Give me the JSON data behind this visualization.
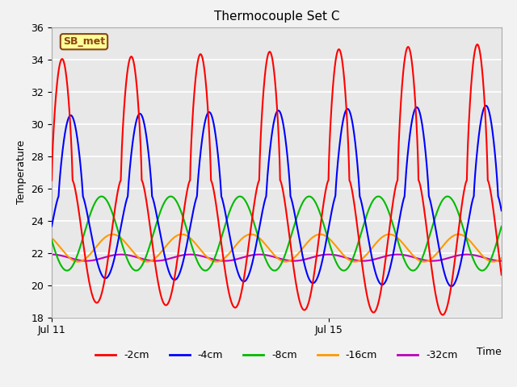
{
  "title": "Thermocouple Set C",
  "ylabel": "Temperature",
  "ylim": [
    18,
    36
  ],
  "xlim": [
    0,
    6.5
  ],
  "xtick_positions": [
    0,
    4.0
  ],
  "xtick_labels": [
    "Jul 11",
    "Jul 15"
  ],
  "ytick_positions": [
    18,
    20,
    22,
    24,
    26,
    28,
    30,
    32,
    34,
    36
  ],
  "bg_color": "#e8e8e8",
  "fig_color": "#f2f2f2",
  "annotation_text": "SB_met",
  "annotation_fg": "#8B4513",
  "annotation_bg": "#FFFF99",
  "annotation_border": "#8B4513",
  "series": [
    {
      "label": "-2cm",
      "color": "#ff0000",
      "amplitude": 7.5,
      "mean": 26.5,
      "phase_shift": 0.0,
      "period": 1.0
    },
    {
      "label": "-4cm",
      "color": "#0000ff",
      "amplitude": 5.0,
      "mean": 25.5,
      "phase_shift": 0.1,
      "period": 1.0
    },
    {
      "label": "-8cm",
      "color": "#00bb00",
      "amplitude": 2.3,
      "mean": 23.2,
      "phase_shift": 0.22,
      "period": 1.0
    },
    {
      "label": "-16cm",
      "color": "#ff9900",
      "amplitude": 0.85,
      "mean": 22.3,
      "phase_shift": 0.38,
      "period": 1.0
    },
    {
      "label": "-32cm",
      "color": "#bb00bb",
      "amplitude": 0.2,
      "mean": 21.7,
      "phase_shift": 0.5,
      "period": 1.0
    }
  ]
}
